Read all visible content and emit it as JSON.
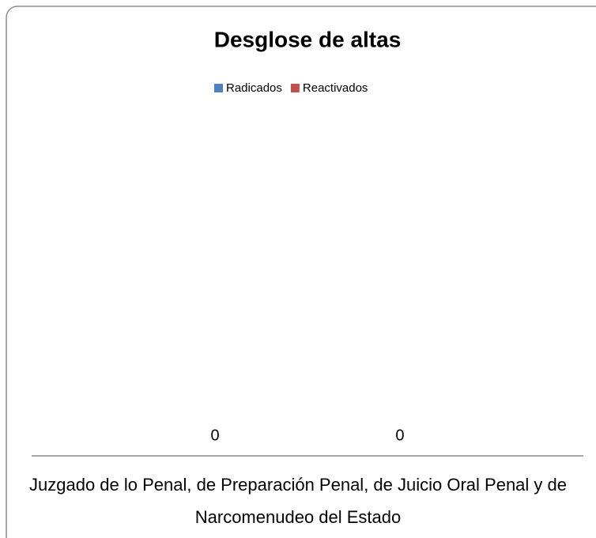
{
  "chart_data": {
    "type": "bar",
    "title": "Desglose de altas",
    "categories": [
      "Juzgado de lo Penal, de Preparación Penal, de Juicio Oral Penal  y de Narcomenudeo del Estado"
    ],
    "series": [
      {
        "name": "Radicados",
        "color": "#4f81bd",
        "values": [
          0
        ]
      },
      {
        "name": "Reactivados",
        "color": "#c0504d",
        "values": [
          0
        ]
      }
    ],
    "legend": "top",
    "data_labels": true
  }
}
